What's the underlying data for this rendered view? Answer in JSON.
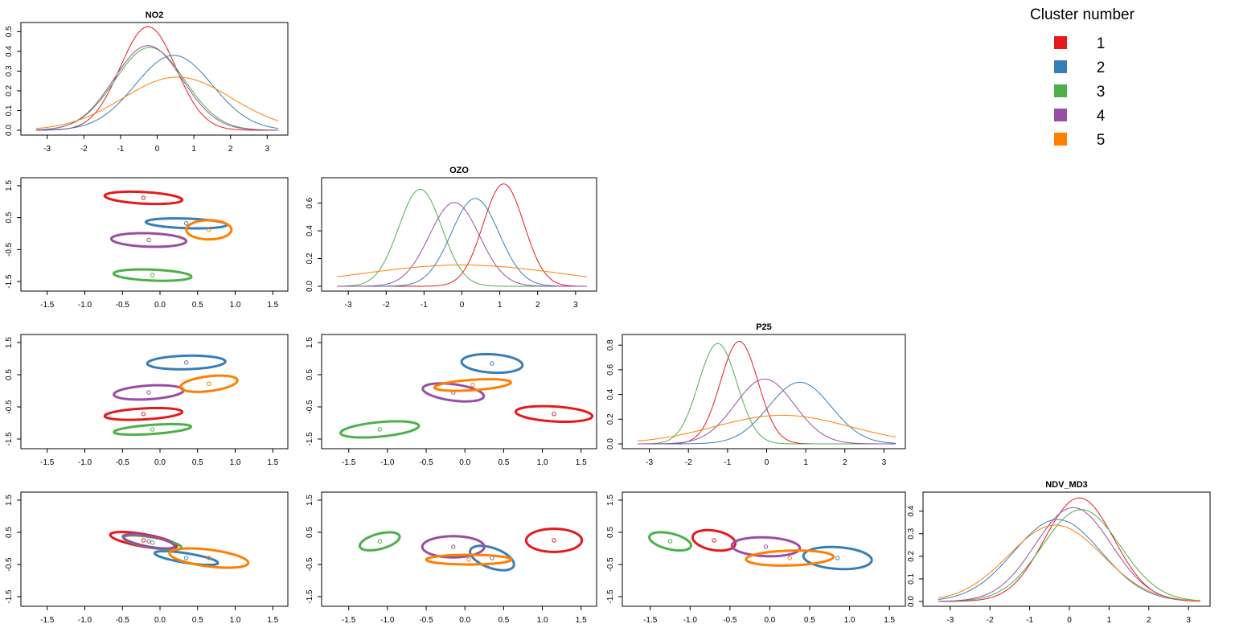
{
  "legend": {
    "title": "Cluster number",
    "items": [
      {
        "label": "1",
        "color": "#E41A1C"
      },
      {
        "label": "2",
        "color": "#377EB8"
      },
      {
        "label": "3",
        "color": "#4DAF4A"
      },
      {
        "label": "4",
        "color": "#984EA3"
      },
      {
        "label": "5",
        "color": "#FF7F00"
      }
    ]
  },
  "chart_data": {
    "type": "scatter-matrix",
    "variables": [
      "NO2",
      "OZO",
      "P25",
      "NDV_MD3"
    ],
    "diagonal": {
      "type": "line",
      "x_range": [
        -3.3,
        3.3
      ],
      "panels": [
        {
          "title": "NO2",
          "xticks": [
            "-3",
            "-2",
            "-1",
            "0",
            "1",
            "2",
            "3"
          ],
          "xtick_values": [
            -3,
            -2,
            -1,
            0,
            1,
            2,
            3
          ],
          "yticks": [
            "0.0",
            "0.1",
            "0.2",
            "0.3",
            "0.4",
            "0.5"
          ],
          "ytick_values": [
            0,
            0.1,
            0.2,
            0.3,
            0.4,
            0.5
          ],
          "ylim": [
            0,
            0.53
          ],
          "series": [
            {
              "name": "1",
              "mean": -0.25,
              "sd": 0.76
            },
            {
              "name": "2",
              "mean": 0.45,
              "sd": 1.05
            },
            {
              "name": "3",
              "mean": -0.2,
              "sd": 0.95
            },
            {
              "name": "4",
              "mean": -0.25,
              "sd": 0.93
            },
            {
              "name": "5",
              "mean": 0.55,
              "sd": 1.48
            }
          ]
        },
        {
          "title": "OZO",
          "xticks": [
            "-3",
            "-2",
            "-1",
            "0",
            "1",
            "2",
            "3"
          ],
          "xtick_values": [
            -3,
            -2,
            -1,
            0,
            1,
            2,
            3
          ],
          "yticks": [
            "0.0",
            "0.2",
            "0.4",
            "0.6"
          ],
          "ytick_values": [
            0,
            0.2,
            0.4,
            0.6
          ],
          "ylim": [
            0,
            0.76
          ],
          "series": [
            {
              "name": "1",
              "mean": 1.1,
              "sd": 0.54
            },
            {
              "name": "2",
              "mean": 0.35,
              "sd": 0.63
            },
            {
              "name": "3",
              "mean": -1.1,
              "sd": 0.57
            },
            {
              "name": "4",
              "mean": -0.2,
              "sd": 0.66
            },
            {
              "name": "5",
              "mean": 0.0,
              "sd": 2.6
            }
          ]
        },
        {
          "title": "P25",
          "xticks": [
            "-3",
            "-2",
            "-1",
            "0",
            "1",
            "2",
            "3"
          ],
          "xtick_values": [
            -3,
            -2,
            -1,
            0,
            1,
            2,
            3
          ],
          "yticks": [
            "0.0",
            "0.2",
            "0.4",
            "0.6",
            "0.8"
          ],
          "ytick_values": [
            0,
            0.2,
            0.4,
            0.6,
            0.8
          ],
          "ylim": [
            0,
            0.86
          ],
          "series": [
            {
              "name": "1",
              "mean": -0.7,
              "sd": 0.48
            },
            {
              "name": "2",
              "mean": 0.85,
              "sd": 0.8
            },
            {
              "name": "3",
              "mean": -1.25,
              "sd": 0.49
            },
            {
              "name": "4",
              "mean": -0.05,
              "sd": 0.76
            },
            {
              "name": "5",
              "mean": 0.4,
              "sd": 1.72
            }
          ]
        },
        {
          "title": "NDV_MD3",
          "xticks": [
            "-3",
            "-2",
            "-1",
            "0",
            "1",
            "2",
            "3"
          ],
          "xtick_values": [
            -3,
            -2,
            -1,
            0,
            1,
            2,
            3
          ],
          "yticks": [
            "0.0",
            "0.1",
            "0.2",
            "0.3",
            "0.4"
          ],
          "ytick_values": [
            0,
            0.1,
            0.2,
            0.3,
            0.4
          ],
          "ylim": [
            0,
            0.47
          ],
          "series": [
            {
              "name": "1",
              "mean": 0.25,
              "sd": 0.87
            },
            {
              "name": "2",
              "mean": -0.3,
              "sd": 1.1
            },
            {
              "name": "3",
              "mean": 0.3,
              "sd": 0.98
            },
            {
              "name": "4",
              "mean": 0.1,
              "sd": 0.96
            },
            {
              "name": "5",
              "mean": -0.35,
              "sd": 1.18
            }
          ]
        }
      ]
    },
    "off_diagonal": {
      "type": "scatter-ellipse",
      "xlim": [
        -1.85,
        1.7
      ],
      "ylim": [
        -1.8,
        1.75
      ],
      "xticks": [
        "-1.5",
        "-1.0",
        "-0.5",
        "0.0",
        "0.5",
        "1.0",
        "1.5"
      ],
      "xtick_values": [
        -1.5,
        -1.0,
        -0.5,
        0.0,
        0.5,
        1.0,
        1.5
      ],
      "yticks": [
        "-1.5",
        "-0.5",
        "0.5",
        "1.5"
      ],
      "ytick_values": [
        -1.5,
        -0.5,
        0.5,
        1.5
      ],
      "panels": [
        {
          "row": "OZO",
          "col": "NO2",
          "clusters": [
            {
              "name": "1",
              "center": [
                -0.22,
                1.12
              ],
              "a": 0.52,
              "b": 0.18,
              "angle_deg": -8
            },
            {
              "name": "2",
              "center": [
                0.35,
                0.32
              ],
              "a": 0.54,
              "b": 0.15,
              "angle_deg": -5
            },
            {
              "name": "3",
              "center": [
                -0.1,
                -1.3
              ],
              "a": 0.52,
              "b": 0.17,
              "angle_deg": -6
            },
            {
              "name": "4",
              "center": [
                -0.15,
                -0.2
              ],
              "a": 0.5,
              "b": 0.21,
              "angle_deg": -5
            },
            {
              "name": "5",
              "center": [
                0.65,
                0.12
              ],
              "a": 0.3,
              "b": 0.3,
              "angle_deg": 0
            }
          ]
        },
        {
          "row": "P25",
          "col": "NO2",
          "clusters": [
            {
              "name": "1",
              "center": [
                -0.22,
                -0.72
              ],
              "a": 0.52,
              "b": 0.17,
              "angle_deg": 8
            },
            {
              "name": "2",
              "center": [
                0.35,
                0.88
              ],
              "a": 0.52,
              "b": 0.21,
              "angle_deg": 4
            },
            {
              "name": "3",
              "center": [
                -0.1,
                -1.2
              ],
              "a": 0.52,
              "b": 0.14,
              "angle_deg": 10
            },
            {
              "name": "4",
              "center": [
                -0.15,
                -0.05
              ],
              "a": 0.47,
              "b": 0.21,
              "angle_deg": 10
            },
            {
              "name": "5",
              "center": [
                0.65,
                0.22
              ],
              "a": 0.4,
              "b": 0.22,
              "angle_deg": 22
            }
          ]
        },
        {
          "row": "P25",
          "col": "OZO",
          "clusters": [
            {
              "name": "1",
              "center": [
                1.15,
                -0.72
              ],
              "a": 0.5,
              "b": 0.23,
              "angle_deg": -10
            },
            {
              "name": "2",
              "center": [
                0.35,
                0.85
              ],
              "a": 0.4,
              "b": 0.28,
              "angle_deg": -15
            },
            {
              "name": "3",
              "center": [
                -1.1,
                -1.2
              ],
              "a": 0.52,
              "b": 0.22,
              "angle_deg": 15
            },
            {
              "name": "4",
              "center": [
                -0.15,
                -0.05
              ],
              "a": 0.42,
              "b": 0.24,
              "angle_deg": -25
            },
            {
              "name": "5",
              "center": [
                0.1,
                0.18
              ],
              "a": 0.5,
              "b": 0.16,
              "angle_deg": 10
            }
          ]
        },
        {
          "row": "NDV_MD3",
          "col": "NO2",
          "clusters": [
            {
              "name": "1",
              "center": [
                -0.22,
                0.25
              ],
              "a": 0.48,
              "b": 0.18,
              "angle_deg": -25
            },
            {
              "name": "2",
              "center": [
                0.35,
                -0.3
              ],
              "a": 0.45,
              "b": 0.14,
              "angle_deg": -22
            },
            {
              "name": "3",
              "center": [
                -0.1,
                0.18
              ],
              "a": 0.42,
              "b": 0.15,
              "angle_deg": -25
            },
            {
              "name": "4",
              "center": [
                -0.15,
                0.22
              ],
              "a": 0.38,
              "b": 0.15,
              "angle_deg": -28
            },
            {
              "name": "5",
              "center": [
                0.65,
                -0.3
              ],
              "a": 0.55,
              "b": 0.25,
              "angle_deg": -20
            }
          ]
        },
        {
          "row": "NDV_MD3",
          "col": "OZO",
          "clusters": [
            {
              "name": "1",
              "center": [
                1.15,
                0.25
              ],
              "a": 0.36,
              "b": 0.36,
              "angle_deg": 30
            },
            {
              "name": "2",
              "center": [
                0.35,
                -0.3
              ],
              "a": 0.42,
              "b": 0.22,
              "angle_deg": -60
            },
            {
              "name": "3",
              "center": [
                -1.1,
                0.22
              ],
              "a": 0.33,
              "b": 0.19,
              "angle_deg": 50
            },
            {
              "name": "4",
              "center": [
                -0.15,
                0.05
              ],
              "a": 0.4,
              "b": 0.33,
              "angle_deg": 0
            },
            {
              "name": "5",
              "center": [
                0.05,
                -0.35
              ],
              "a": 0.55,
              "b": 0.15,
              "angle_deg": 0
            }
          ]
        },
        {
          "row": "NDV_MD3",
          "col": "P25",
          "clusters": [
            {
              "name": "1",
              "center": [
                -0.7,
                0.25
              ],
              "a": 0.34,
              "b": 0.24,
              "angle_deg": -60
            },
            {
              "name": "2",
              "center": [
                0.85,
                -0.3
              ],
              "a": 0.44,
              "b": 0.33,
              "angle_deg": -20
            },
            {
              "name": "3",
              "center": [
                -1.25,
                0.22
              ],
              "a": 0.33,
              "b": 0.2,
              "angle_deg": -50
            },
            {
              "name": "4",
              "center": [
                -0.05,
                0.05
              ],
              "a": 0.43,
              "b": 0.29,
              "angle_deg": -10
            },
            {
              "name": "5",
              "center": [
                0.25,
                -0.3
              ],
              "a": 0.55,
              "b": 0.23,
              "angle_deg": 5
            }
          ]
        }
      ]
    }
  }
}
